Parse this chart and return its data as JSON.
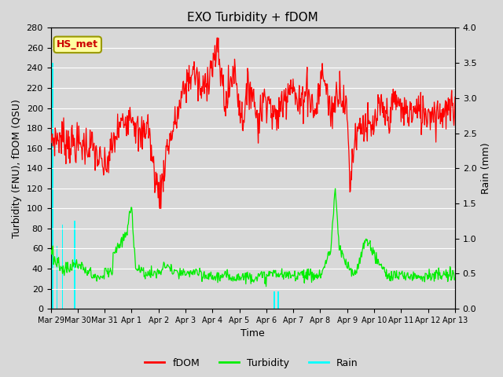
{
  "title": "EXO Turbidity + fDOM",
  "xlabel": "Time",
  "ylabel_left": "Turbidity (FNU), fDOM (QSU)",
  "ylabel_right": "Rain (mm)",
  "annotation": "HS_met",
  "ylim_left": [
    0,
    280
  ],
  "ylim_right": [
    0,
    4.0
  ],
  "yticks_left": [
    0,
    20,
    40,
    60,
    80,
    100,
    120,
    140,
    160,
    180,
    200,
    220,
    240,
    260,
    280
  ],
  "yticks_right": [
    0.0,
    0.5,
    1.0,
    1.5,
    2.0,
    2.5,
    3.0,
    3.5,
    4.0
  ],
  "xtick_labels": [
    "Mar 29",
    "Mar 30",
    "Mar 31",
    "Apr 1",
    "Apr 2",
    "Apr 3",
    "Apr 4",
    "Apr 5",
    "Apr 6",
    "Apr 7",
    "Apr 8",
    "Apr 9",
    "Apr 10",
    "Apr 11",
    "Apr 12",
    "Apr 13"
  ],
  "fdom_color": "#ff0000",
  "turbidity_color": "#00ee00",
  "rain_color": "#00ffff",
  "background_color": "#dcdcdc",
  "grid_color": "#ffffff",
  "legend_labels": [
    "fDOM",
    "Turbidity",
    "Rain"
  ],
  "n_points": 720
}
